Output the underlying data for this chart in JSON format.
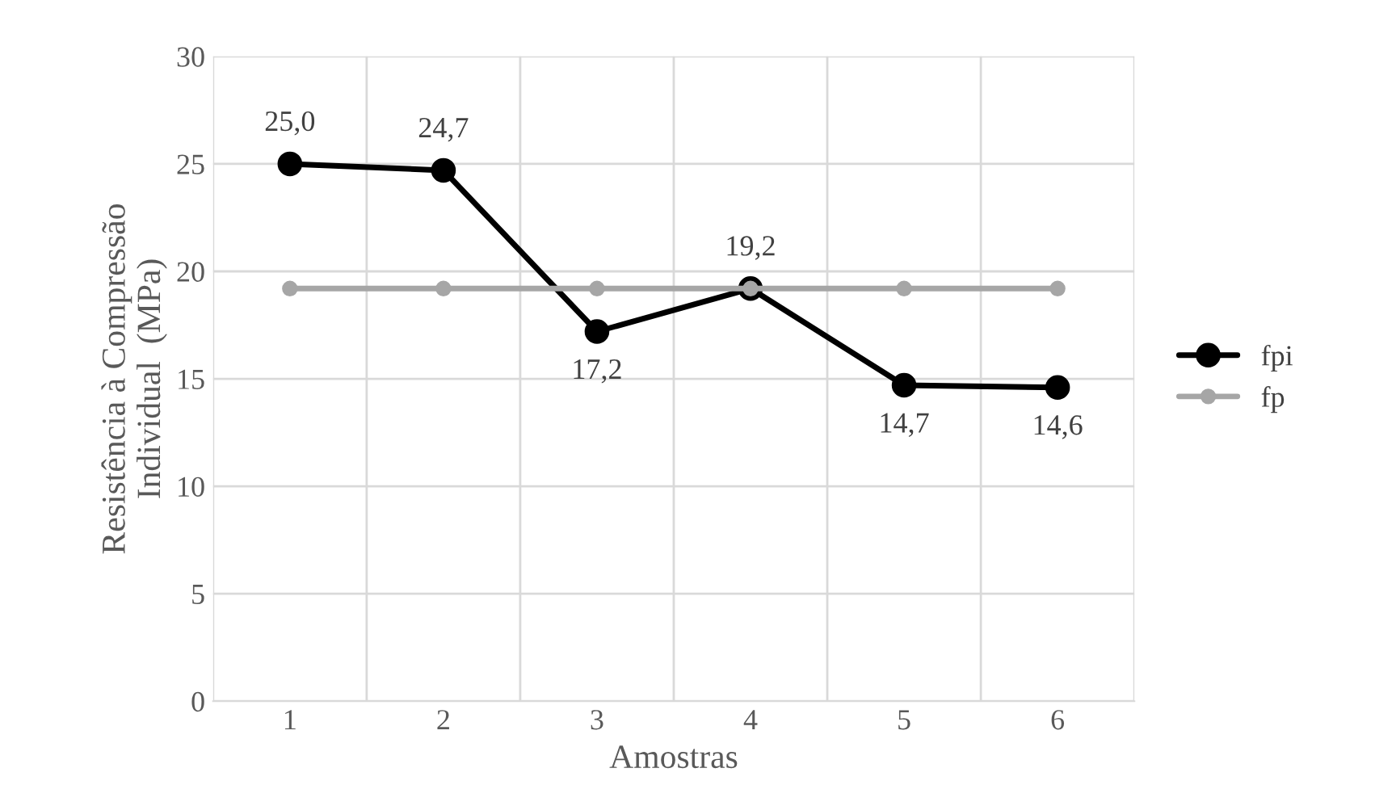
{
  "chart_data": {
    "type": "line",
    "xlabel": "Amostras",
    "ylabel": "Resistência à Compressão\nIndividual  (MPa)",
    "categories": [
      "1",
      "2",
      "3",
      "4",
      "5",
      "6"
    ],
    "series": [
      {
        "name": "fpi",
        "color": "#000000",
        "values": [
          25.0,
          24.7,
          17.2,
          19.2,
          14.7,
          14.6
        ],
        "value_labels": [
          "25,0",
          "24,7",
          "17,2",
          "19,2",
          "14,7",
          "14,6"
        ]
      },
      {
        "name": "fp",
        "color": "#a6a6a6",
        "values": [
          19.2,
          19.2,
          19.2,
          19.2,
          19.2,
          19.2
        ]
      }
    ],
    "ylim": [
      0,
      30
    ],
    "yticks": [
      0,
      5,
      10,
      15,
      20,
      25,
      30
    ],
    "grid": true,
    "legend": "right",
    "marker": "circle",
    "line_style": "solid"
  }
}
